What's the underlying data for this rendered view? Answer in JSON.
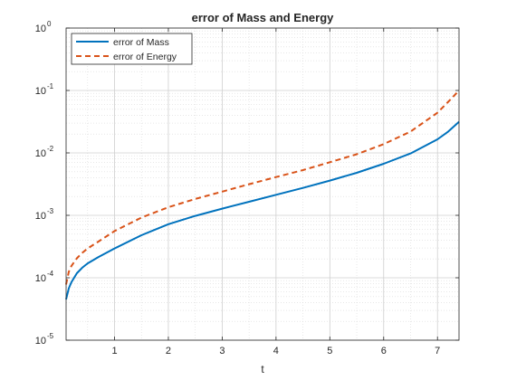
{
  "chart_data": {
    "type": "line",
    "title": "error of Mass and Energy",
    "xlabel": "t",
    "ylabel": "",
    "xlim": [
      0.1,
      7.4
    ],
    "ylim": [
      1e-05,
      1
    ],
    "yscale": "log",
    "grid": "major and minor",
    "legend_position": "top-left",
    "xticks": [
      1,
      2,
      3,
      4,
      5,
      6,
      7
    ],
    "yticks": [
      {
        "value": 1e-05,
        "base": "10",
        "exp": "-5"
      },
      {
        "value": 0.0001,
        "base": "10",
        "exp": "-4"
      },
      {
        "value": 0.001,
        "base": "10",
        "exp": "-3"
      },
      {
        "value": 0.01,
        "base": "10",
        "exp": "-2"
      },
      {
        "value": 0.1,
        "base": "10",
        "exp": "-1"
      },
      {
        "value": 1,
        "base": "10",
        "exp": "0"
      }
    ],
    "series": [
      {
        "name": "error of Mass",
        "color": "#0072BD",
        "style": "solid",
        "x": [
          0.1,
          0.15,
          0.2,
          0.3,
          0.4,
          0.5,
          0.7,
          1.0,
          1.5,
          2.0,
          2.5,
          3.0,
          3.5,
          4.0,
          4.5,
          5.0,
          5.5,
          6.0,
          6.5,
          7.0,
          7.2,
          7.4
        ],
        "y": [
          4.5e-05,
          6.8e-05,
          8.5e-05,
          0.000118,
          0.000145,
          0.00017,
          0.000215,
          0.000295,
          0.00048,
          0.00072,
          0.00098,
          0.00128,
          0.00165,
          0.00213,
          0.00275,
          0.0036,
          0.0048,
          0.0067,
          0.0098,
          0.0165,
          0.022,
          0.0315
        ]
      },
      {
        "name": "error of Energy",
        "color": "#D95319",
        "style": "dashed",
        "x": [
          0.1,
          0.15,
          0.2,
          0.3,
          0.4,
          0.5,
          0.7,
          1.0,
          1.5,
          2.0,
          2.5,
          3.0,
          3.5,
          4.0,
          4.5,
          5.0,
          5.5,
          6.0,
          6.5,
          7.0,
          7.2,
          7.4
        ],
        "y": [
          7.8e-05,
          0.000125,
          0.000155,
          0.000205,
          0.00025,
          0.000295,
          0.00038,
          0.00056,
          0.00092,
          0.00135,
          0.00183,
          0.0024,
          0.00315,
          0.0041,
          0.0053,
          0.0071,
          0.0095,
          0.0138,
          0.022,
          0.044,
          0.066,
          0.1
        ]
      }
    ]
  }
}
